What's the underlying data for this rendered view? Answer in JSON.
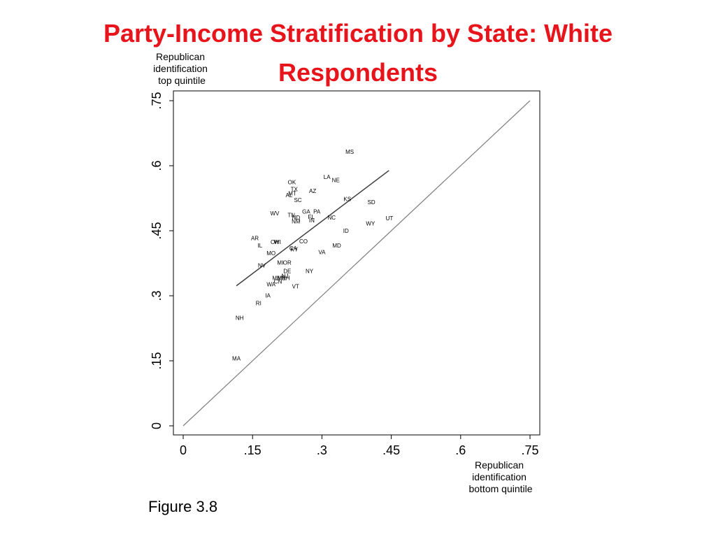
{
  "slide": {
    "title": "Party-Income Stratification by State: White Respondents",
    "caption": "Figure 3.8"
  },
  "chart_data": {
    "type": "scatter",
    "ylabel_lines": [
      "Republican",
      "identification",
      "top quintile"
    ],
    "xlabel_lines": [
      "Republican",
      "identification",
      "bottom quintile"
    ],
    "xlim": [
      0,
      0.75
    ],
    "ylim": [
      0,
      0.75
    ],
    "xticks": [
      0,
      0.15,
      0.3,
      0.45,
      0.6,
      0.75
    ],
    "xtick_labels": [
      "0",
      ".15",
      ".3",
      ".45",
      ".6",
      ".75"
    ],
    "yticks": [
      0,
      0.15,
      0.3,
      0.45,
      0.6,
      0.75
    ],
    "ytick_labels": [
      "0",
      ".15",
      ".3",
      ".45",
      ".6",
      ".75"
    ],
    "grid": false,
    "reference_line": {
      "x": [
        0,
        0.75
      ],
      "y": [
        0,
        0.75
      ],
      "color": "#808080"
    },
    "fit_line": {
      "x": [
        0.115,
        0.445
      ],
      "y": [
        0.323,
        0.589
      ],
      "color": "#404040"
    },
    "points": [
      {
        "label": "MS",
        "x": 0.36,
        "y": 0.632
      },
      {
        "label": "LA",
        "x": 0.311,
        "y": 0.574
      },
      {
        "label": "NE",
        "x": 0.33,
        "y": 0.567
      },
      {
        "label": "OK",
        "x": 0.235,
        "y": 0.562
      },
      {
        "label": "TX",
        "x": 0.24,
        "y": 0.546
      },
      {
        "label": "MT",
        "x": 0.236,
        "y": 0.536
      },
      {
        "label": "AL",
        "x": 0.229,
        "y": 0.532
      },
      {
        "label": "AZ",
        "x": 0.28,
        "y": 0.542
      },
      {
        "label": "SC",
        "x": 0.248,
        "y": 0.521
      },
      {
        "label": "KS",
        "x": 0.355,
        "y": 0.523
      },
      {
        "label": "SD",
        "x": 0.407,
        "y": 0.516
      },
      {
        "label": "WV",
        "x": 0.198,
        "y": 0.49
      },
      {
        "label": "GA",
        "x": 0.266,
        "y": 0.494
      },
      {
        "label": "PA",
        "x": 0.289,
        "y": 0.494
      },
      {
        "label": "TN",
        "x": 0.234,
        "y": 0.486
      },
      {
        "label": "ND",
        "x": 0.244,
        "y": 0.481
      },
      {
        "label": "FL",
        "x": 0.277,
        "y": 0.482
      },
      {
        "label": "NC",
        "x": 0.321,
        "y": 0.481
      },
      {
        "label": "UT",
        "x": 0.446,
        "y": 0.479
      },
      {
        "label": "NM",
        "x": 0.244,
        "y": 0.472
      },
      {
        "label": "IN",
        "x": 0.278,
        "y": 0.474
      },
      {
        "label": "WY",
        "x": 0.405,
        "y": 0.467
      },
      {
        "label": "ID",
        "x": 0.352,
        "y": 0.45
      },
      {
        "label": "AR",
        "x": 0.155,
        "y": 0.433
      },
      {
        "label": "CO",
        "x": 0.26,
        "y": 0.426
      },
      {
        "label": "OH",
        "x": 0.198,
        "y": 0.424
      },
      {
        "label": "WI",
        "x": 0.204,
        "y": 0.424
      },
      {
        "label": "IL",
        "x": 0.166,
        "y": 0.416
      },
      {
        "label": "MD",
        "x": 0.332,
        "y": 0.416
      },
      {
        "label": "CA",
        "x": 0.238,
        "y": 0.41
      },
      {
        "label": "KY",
        "x": 0.24,
        "y": 0.407
      },
      {
        "label": "VA",
        "x": 0.3,
        "y": 0.401
      },
      {
        "label": "MO",
        "x": 0.19,
        "y": 0.398
      },
      {
        "label": "MI",
        "x": 0.21,
        "y": 0.377
      },
      {
        "label": "OR",
        "x": 0.225,
        "y": 0.377
      },
      {
        "label": "NV",
        "x": 0.17,
        "y": 0.37
      },
      {
        "label": "NY",
        "x": 0.273,
        "y": 0.357
      },
      {
        "label": "DE",
        "x": 0.225,
        "y": 0.357
      },
      {
        "label": "NJ",
        "x": 0.22,
        "y": 0.346
      },
      {
        "label": "MN",
        "x": 0.202,
        "y": 0.341
      },
      {
        "label": "ME",
        "x": 0.213,
        "y": 0.341
      },
      {
        "label": "NH",
        "x": 0.222,
        "y": 0.341
      },
      {
        "label": "CN",
        "x": 0.205,
        "y": 0.333
      },
      {
        "label": "WA",
        "x": 0.19,
        "y": 0.327
      },
      {
        "label": "VT",
        "x": 0.243,
        "y": 0.322
      },
      {
        "label": "IA",
        "x": 0.183,
        "y": 0.301
      },
      {
        "label": "RI",
        "x": 0.163,
        "y": 0.283
      },
      {
        "label": "NH",
        "x": 0.122,
        "y": 0.249
      },
      {
        "label": "MA",
        "x": 0.115,
        "y": 0.156
      }
    ]
  }
}
